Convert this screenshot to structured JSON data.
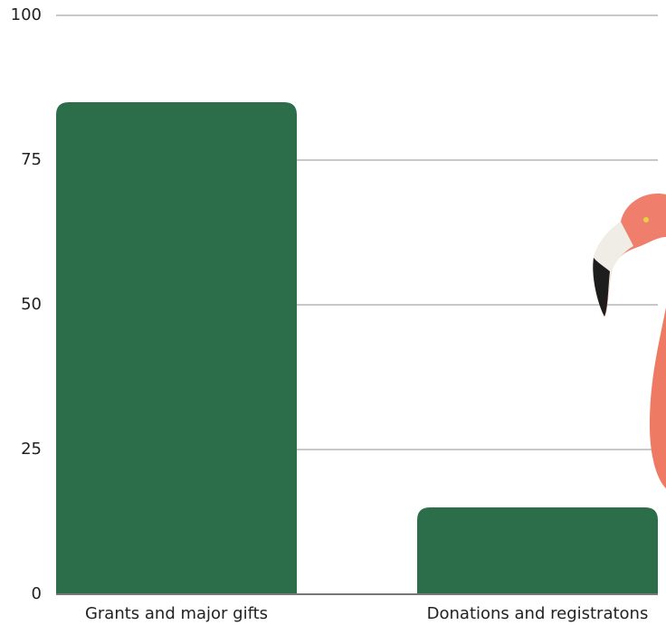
{
  "chart_data": {
    "type": "bar",
    "categories": [
      "Grants and major gifts",
      "Donations and registratons"
    ],
    "values": [
      85,
      15
    ],
    "color": "#2d6e4a",
    "ylim": [
      0,
      100
    ],
    "yticks": [
      0,
      25,
      50,
      75,
      100
    ],
    "grid": true
  }
}
